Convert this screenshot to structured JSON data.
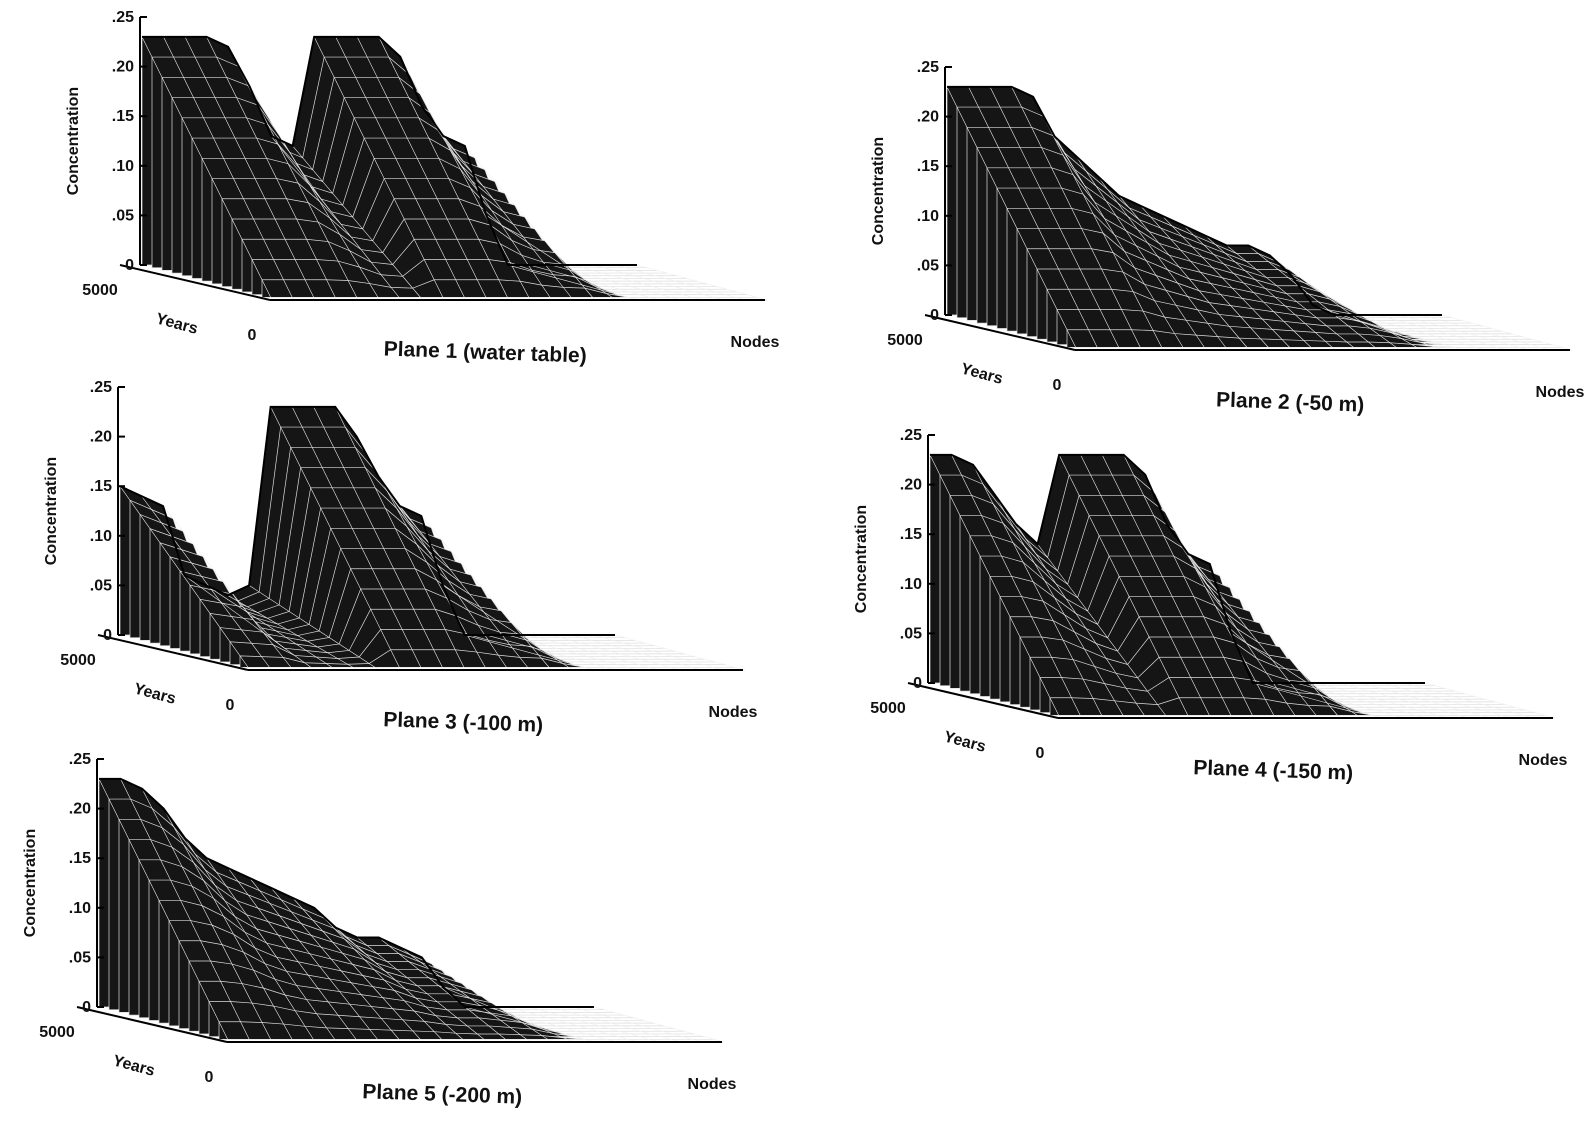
{
  "chart_data": [
    {
      "type": "surface3d",
      "title": "Plane 1 (water table)",
      "ylabel": "Concentration",
      "xlabel": "Nodes",
      "zlabel": "Years",
      "ylim": [
        0,
        0.25
      ],
      "yticks": [
        {
          "value": 0,
          "label": "0"
        },
        {
          "value": 0.05,
          "label": ".05"
        },
        {
          "value": 0.1,
          "label": ".10"
        },
        {
          "value": 0.15,
          "label": ".15"
        },
        {
          "value": 0.2,
          "label": ".20"
        },
        {
          "value": 0.25,
          "label": ".25"
        }
      ],
      "zticks": [
        5000,
        0
      ],
      "values": [
        0.23,
        0.23,
        0.23,
        0.23,
        0.22,
        0.18,
        0.13,
        0.12,
        0.23,
        0.23,
        0.23,
        0.23,
        0.21,
        0.16,
        0.13,
        0.12,
        0.05,
        0,
        0,
        0,
        0,
        0,
        0,
        0
      ]
    },
    {
      "type": "surface3d",
      "title": "Plane 2 (-50 m)",
      "ylabel": "Concentration",
      "xlabel": "Nodes",
      "zlabel": "Years",
      "ylim": [
        0,
        0.25
      ],
      "yticks": [
        {
          "value": 0,
          "label": "0"
        },
        {
          "value": 0.05,
          "label": ".05"
        },
        {
          "value": 0.1,
          "label": ".10"
        },
        {
          "value": 0.15,
          "label": ".15"
        },
        {
          "value": 0.2,
          "label": ".20"
        },
        {
          "value": 0.25,
          "label": ".25"
        }
      ],
      "zticks": [
        5000,
        0
      ],
      "values": [
        0.23,
        0.23,
        0.23,
        0.23,
        0.22,
        0.18,
        0.16,
        0.14,
        0.12,
        0.11,
        0.1,
        0.09,
        0.08,
        0.07,
        0.07,
        0.06,
        0.04,
        0.01,
        0,
        0,
        0,
        0,
        0,
        0
      ]
    },
    {
      "type": "surface3d",
      "title": "Plane 3 (-100 m)",
      "ylabel": "Concentration",
      "xlabel": "Nodes",
      "zlabel": "Years",
      "ylim": [
        0,
        0.25
      ],
      "yticks": [
        {
          "value": 0,
          "label": "0"
        },
        {
          "value": 0.05,
          "label": ".05"
        },
        {
          "value": 0.1,
          "label": ".10"
        },
        {
          "value": 0.15,
          "label": ".15"
        },
        {
          "value": 0.2,
          "label": ".20"
        },
        {
          "value": 0.25,
          "label": ".25"
        }
      ],
      "zticks": [
        5000,
        0
      ],
      "values": [
        0.15,
        0.14,
        0.13,
        0.06,
        0.05,
        0.04,
        0.05,
        0.23,
        0.23,
        0.23,
        0.23,
        0.2,
        0.16,
        0.13,
        0.12,
        0.05,
        0,
        0,
        0,
        0,
        0,
        0,
        0,
        0
      ]
    },
    {
      "type": "surface3d",
      "title": "Plane 4 (-150 m)",
      "ylabel": "Concentration",
      "xlabel": "Nodes",
      "zlabel": "Years",
      "ylim": [
        0,
        0.25
      ],
      "yticks": [
        {
          "value": 0,
          "label": "0"
        },
        {
          "value": 0.05,
          "label": ".05"
        },
        {
          "value": 0.1,
          "label": ".10"
        },
        {
          "value": 0.15,
          "label": ".15"
        },
        {
          "value": 0.2,
          "label": ".20"
        },
        {
          "value": 0.25,
          "label": ".25"
        }
      ],
      "zticks": [
        5000,
        0
      ],
      "values": [
        0.23,
        0.23,
        0.22,
        0.19,
        0.16,
        0.14,
        0.23,
        0.23,
        0.23,
        0.23,
        0.21,
        0.16,
        0.13,
        0.12,
        0.05,
        0,
        0,
        0,
        0,
        0,
        0,
        0,
        0,
        0
      ]
    },
    {
      "type": "surface3d",
      "title": "Plane 5 (-200 m)",
      "ylabel": "Concentration",
      "xlabel": "Nodes",
      "zlabel": "Years",
      "ylim": [
        0,
        0.25
      ],
      "yticks": [
        {
          "value": 0,
          "label": "0"
        },
        {
          "value": 0.05,
          "label": ".05"
        },
        {
          "value": 0.1,
          "label": ".10"
        },
        {
          "value": 0.15,
          "label": ".15"
        },
        {
          "value": 0.2,
          "label": ".20"
        },
        {
          "value": 0.25,
          "label": ".25"
        }
      ],
      "zticks": [
        5000,
        0
      ],
      "values": [
        0.23,
        0.23,
        0.22,
        0.2,
        0.17,
        0.15,
        0.14,
        0.13,
        0.12,
        0.11,
        0.1,
        0.08,
        0.07,
        0.07,
        0.06,
        0.05,
        0.02,
        0,
        0,
        0,
        0,
        0,
        0,
        0
      ]
    }
  ]
}
